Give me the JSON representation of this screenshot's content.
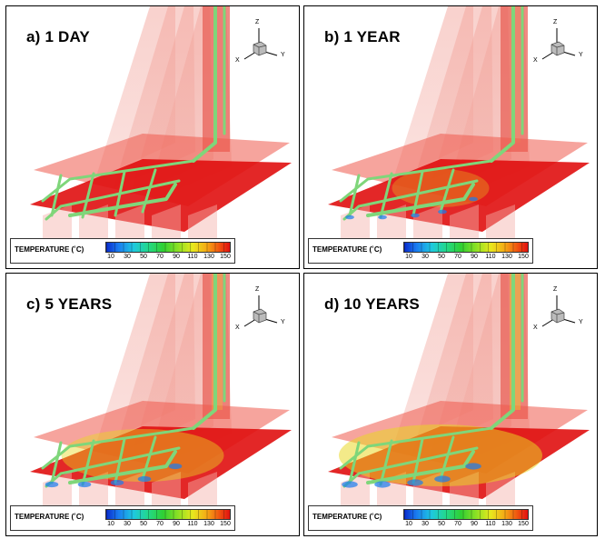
{
  "figure": {
    "legend_title": "TEMPERATURE (˚C)",
    "legend_ticks": [
      "10",
      "30",
      "50",
      "70",
      "90",
      "110",
      "130",
      "150"
    ],
    "colors": {
      "hot": "#e01010",
      "pipe": "#7fd67a",
      "cool": "#1a7cf0"
    },
    "axes": {
      "z": "Z",
      "x": "X",
      "y": "Y"
    },
    "panels": [
      {
        "title": "a) 1 DAY",
        "time": "1 day",
        "plume_extent": 0.0
      },
      {
        "title": "b) 1 YEAR",
        "time": "1 year",
        "plume_extent": 0.15
      },
      {
        "title": "c) 5 YEARS",
        "time": "5 years",
        "plume_extent": 0.55
      },
      {
        "title": "d) 10 YEARS",
        "time": "10 years",
        "plume_extent": 0.8
      }
    ]
  }
}
